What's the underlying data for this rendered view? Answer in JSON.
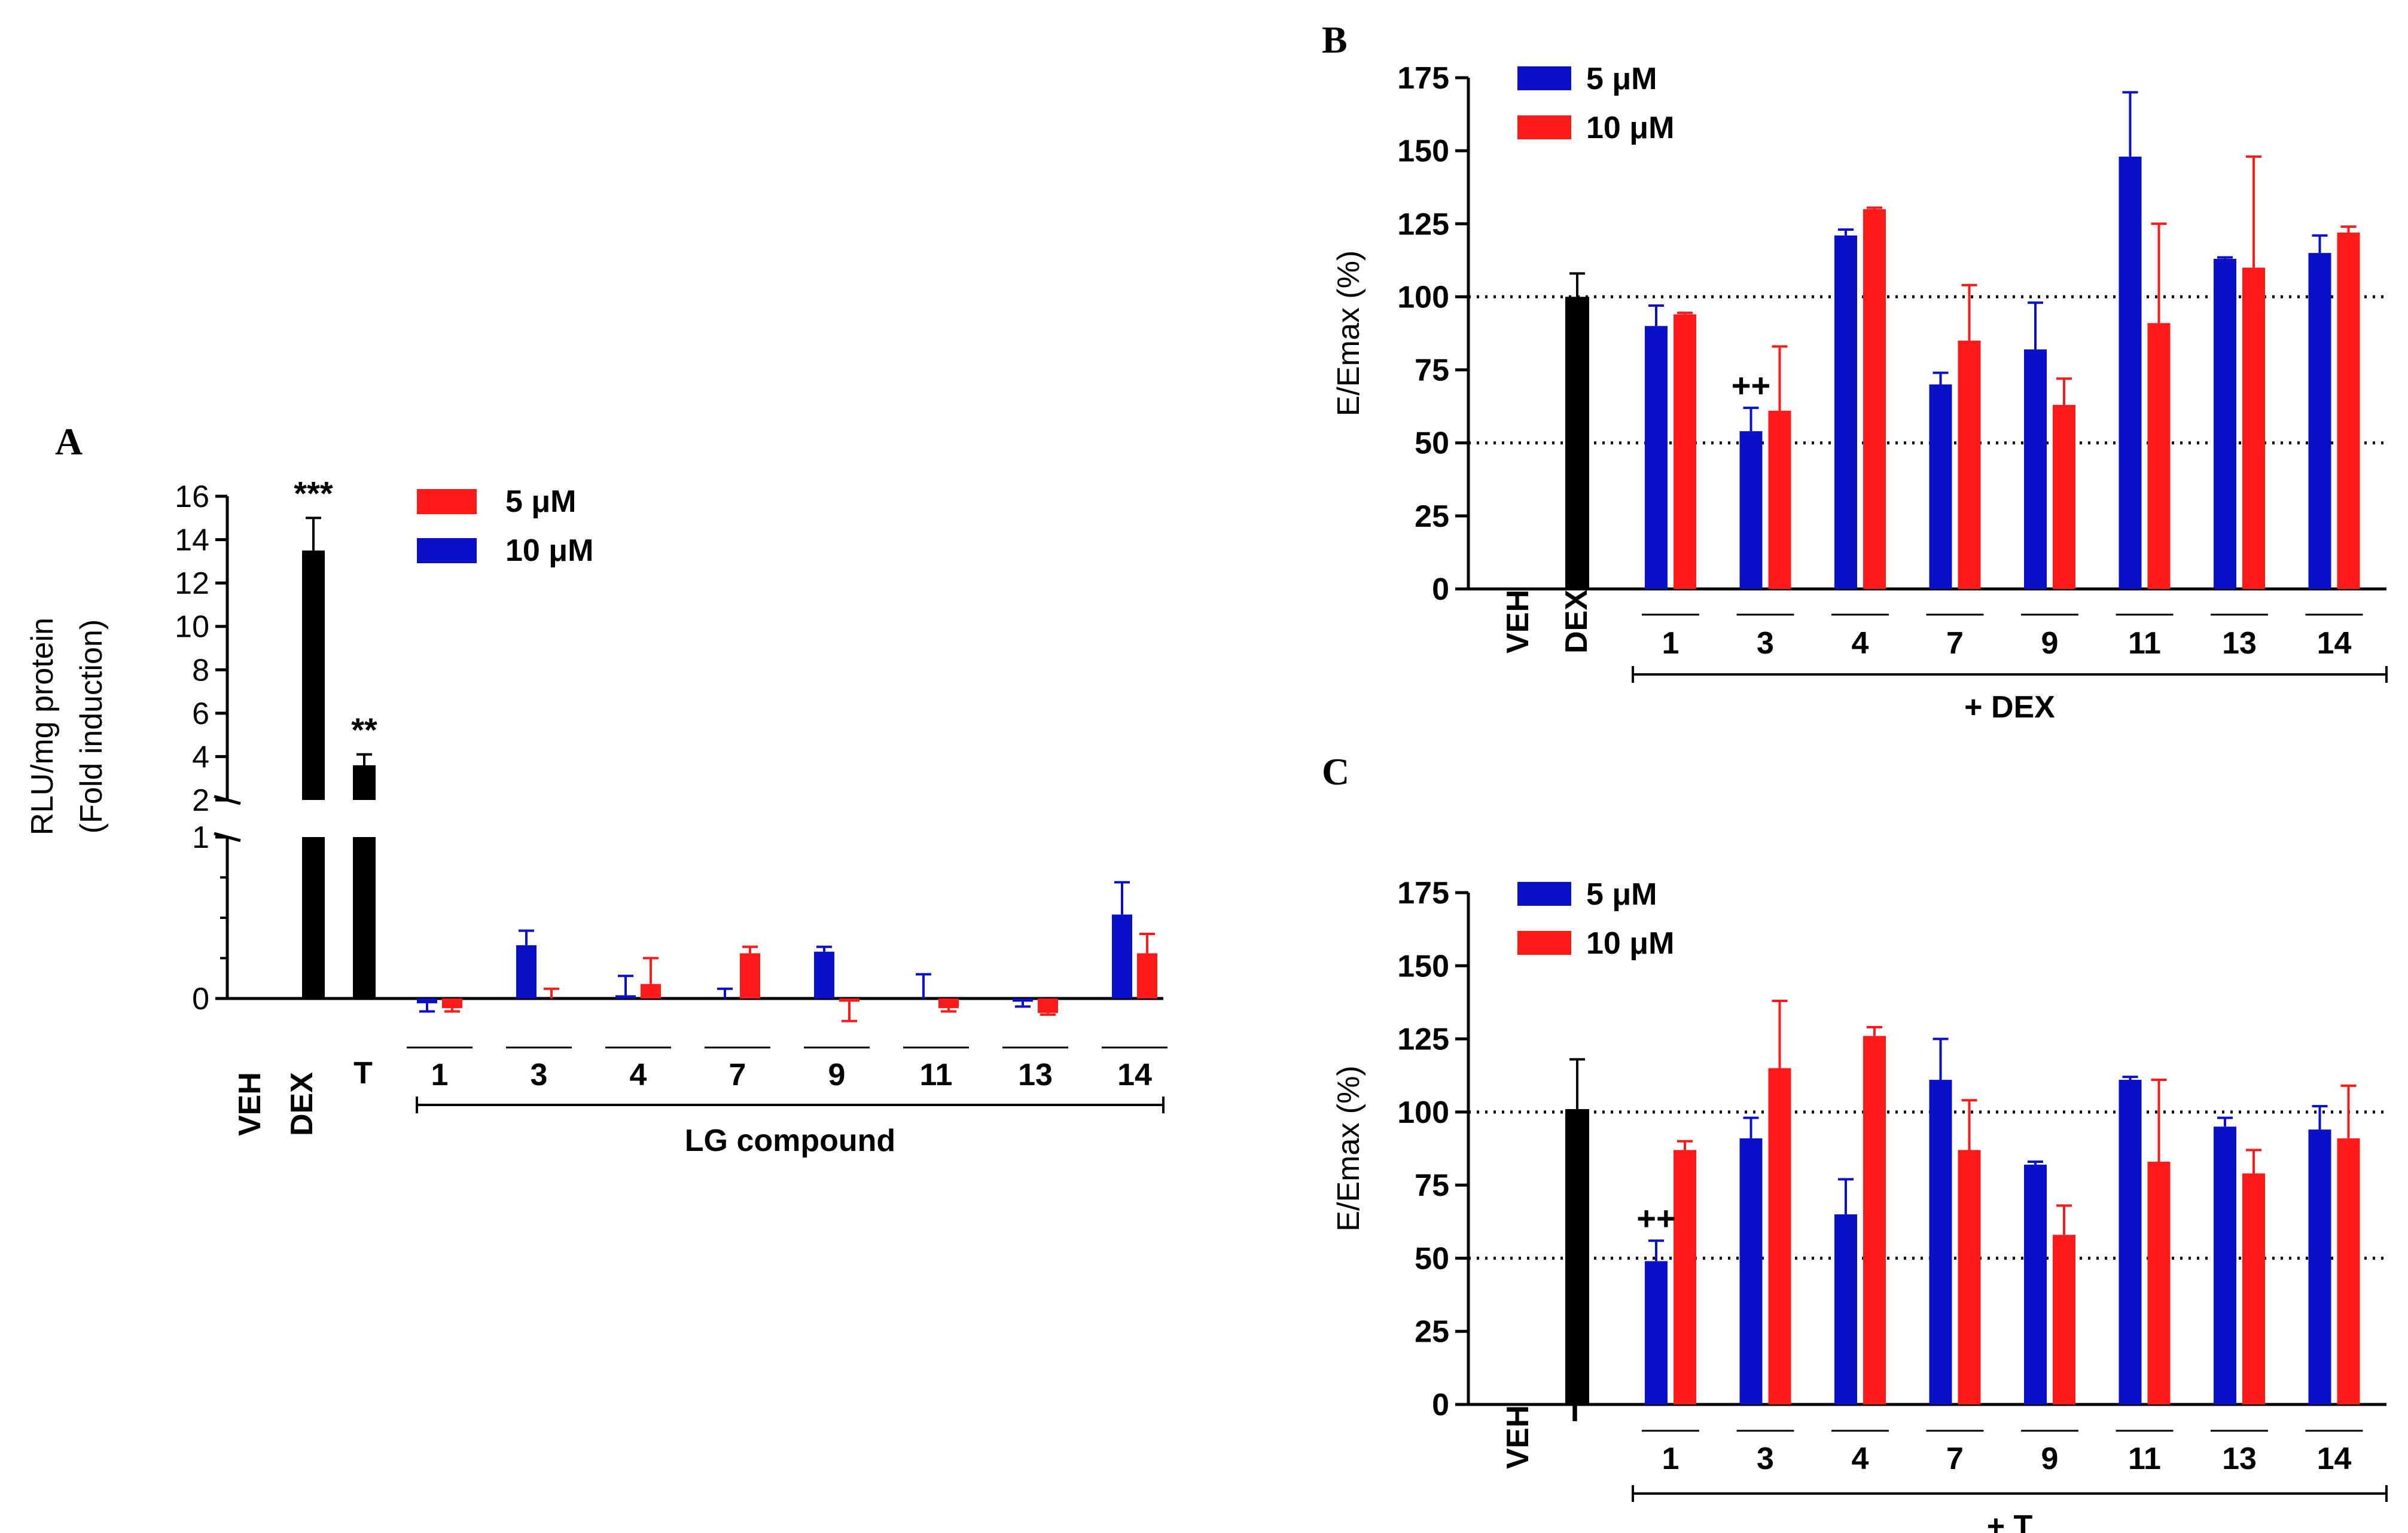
{
  "colors": {
    "blue": "#0a10c8",
    "red": "#ff1a1a",
    "black": "#000000"
  },
  "chart_data": [
    {
      "id": "A",
      "type": "bar",
      "panel_label": "A",
      "ylabel_line1": "RLU/mg protein",
      "ylabel_line2": "(Fold induction)",
      "group_label": "LG compound",
      "yaxis_upper_ticks": [
        "2",
        "4",
        "6",
        "8",
        "10",
        "12",
        "14",
        "16"
      ],
      "yaxis_lower_ticks": [
        "0",
        "1"
      ],
      "legend": [
        {
          "name": "5 μM",
          "color": "#ff1a1a"
        },
        {
          "name": "10 μM",
          "color": "#0a10c8"
        }
      ],
      "controls": [
        {
          "label": "VEH",
          "value": 0,
          "err": 0,
          "annotation": ""
        },
        {
          "label": "DEX",
          "value": 13.5,
          "err": 1.5,
          "annotation": "***"
        },
        {
          "label": "T",
          "value": 3.6,
          "err": 0.5,
          "annotation": "**"
        }
      ],
      "categories": [
        "1",
        "3",
        "4",
        "7",
        "9",
        "11",
        "13",
        "14"
      ],
      "series": [
        {
          "name": "10 μM",
          "color": "#0a10c8",
          "values": [
            -0.03,
            0.33,
            0.02,
            0.0,
            0.29,
            0.0,
            -0.02,
            0.52
          ],
          "errors": [
            0.05,
            0.09,
            0.12,
            0.06,
            0.03,
            0.15,
            0.03,
            0.2
          ]
        },
        {
          "name": "5 μM",
          "color": "#ff1a1a",
          "values": [
            -0.06,
            0.0,
            0.09,
            0.28,
            -0.02,
            -0.06,
            -0.09,
            0.28
          ],
          "errors": [
            0.02,
            0.06,
            0.16,
            0.04,
            0.12,
            0.02,
            0.01,
            0.12
          ]
        }
      ]
    },
    {
      "id": "B",
      "type": "bar",
      "panel_label": "B",
      "ylabel": "E/Emax (%)",
      "ylim": [
        0,
        175
      ],
      "yticks": [
        0,
        25,
        50,
        75,
        100,
        125,
        150,
        175
      ],
      "reference_lines": [
        50,
        100
      ],
      "group_label": "+ DEX",
      "legend": [
        {
          "name": "5 μM",
          "color": "#0a10c8"
        },
        {
          "name": "10 μM",
          "color": "#ff1a1a"
        }
      ],
      "controls": [
        {
          "label": "VEH",
          "value": 0,
          "err": 0
        },
        {
          "label": "DEX",
          "value": 100,
          "err": 8
        }
      ],
      "categories": [
        "1",
        "3",
        "4",
        "7",
        "9",
        "11",
        "13",
        "14"
      ],
      "series": [
        {
          "name": "5 μM",
          "color": "#0a10c8",
          "values": [
            90,
            54,
            121,
            70,
            82,
            148,
            113,
            115
          ],
          "errors": [
            7,
            8,
            2,
            4,
            16,
            22,
            0.5,
            6
          ]
        },
        {
          "name": "10 μM",
          "color": "#ff1a1a",
          "values": [
            94,
            61,
            130,
            85,
            63,
            91,
            110,
            122
          ],
          "errors": [
            0.5,
            22,
            0.5,
            19,
            9,
            34,
            38,
            2
          ]
        }
      ],
      "annotations": [
        {
          "category": "3",
          "text": "++"
        }
      ]
    },
    {
      "id": "C",
      "type": "bar",
      "panel_label": "C",
      "ylabel": "E/Emax (%)",
      "ylim": [
        0,
        175
      ],
      "yticks": [
        0,
        25,
        50,
        75,
        100,
        125,
        150,
        175
      ],
      "reference_lines": [
        50,
        100
      ],
      "group_label": "+ T",
      "legend": [
        {
          "name": "5 μM",
          "color": "#0a10c8"
        },
        {
          "name": "10 μM",
          "color": "#ff1a1a"
        }
      ],
      "controls": [
        {
          "label": "VEH",
          "value": 0,
          "err": 0
        },
        {
          "label": "T",
          "value": 101,
          "err": 17
        }
      ],
      "categories": [
        "1",
        "3",
        "4",
        "7",
        "9",
        "11",
        "13",
        "14"
      ],
      "series": [
        {
          "name": "5 μM",
          "color": "#0a10c8",
          "values": [
            49,
            91,
            65,
            111,
            82,
            111,
            95,
            94
          ],
          "errors": [
            7,
            7,
            12,
            14,
            1,
            1,
            3,
            8
          ]
        },
        {
          "name": "10 μM",
          "color": "#ff1a1a",
          "values": [
            87,
            115,
            126,
            87,
            58,
            83,
            79,
            91
          ],
          "errors": [
            3,
            23,
            3,
            17,
            10,
            28,
            8,
            18
          ]
        }
      ],
      "annotations": [
        {
          "category": "1",
          "text": "++"
        }
      ]
    }
  ]
}
